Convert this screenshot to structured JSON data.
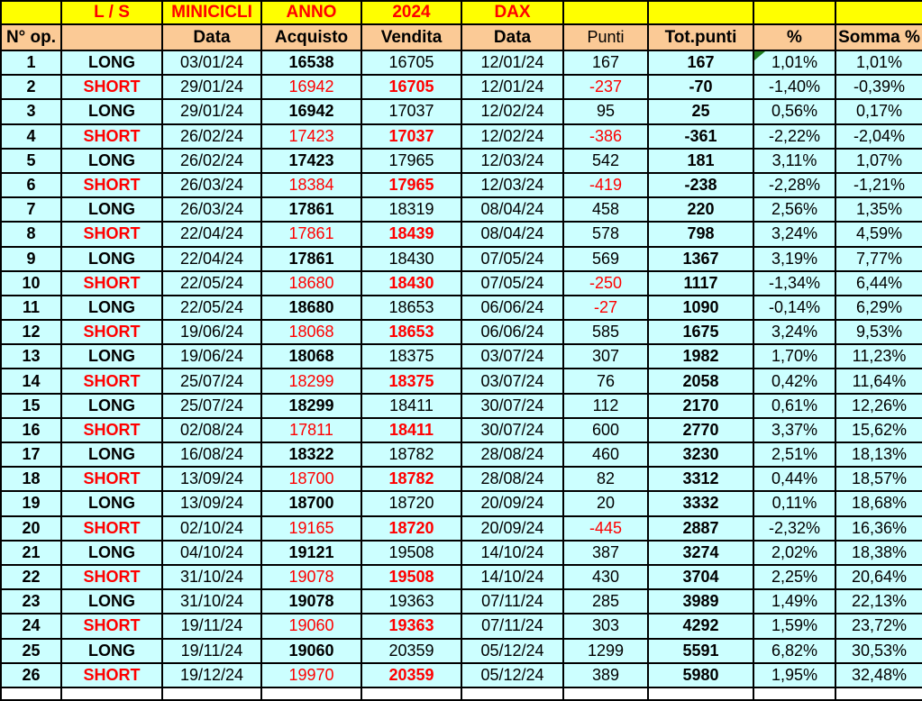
{
  "colors": {
    "header_band_yellow": "#FFFF00",
    "header_band_peach": "#FBCA96",
    "data_row_cyan": "#CCFFFF",
    "negative_and_short_red": "#FF0000",
    "corner_marker_green": "#1E7D1E",
    "grid_border_black": "#000000"
  },
  "header": {
    "row1": [
      "",
      "L / S",
      "MINICICLI",
      "ANNO",
      "2024",
      "DAX",
      "",
      "",
      "",
      ""
    ],
    "row2": [
      "N° op.",
      "",
      "Data",
      "Acquisto",
      "Vendita",
      "Data",
      "Punti",
      "Tot.punti",
      "%",
      "Somma %"
    ]
  },
  "columns": [
    "n",
    "ls",
    "data_in",
    "acquisto",
    "vendita",
    "data_out",
    "punti",
    "tot_punti",
    "pct",
    "somma_pct"
  ],
  "corner_marker": {
    "row_index": 0,
    "column": "pct"
  },
  "rows": [
    {
      "n": "1",
      "ls": "LONG",
      "data_in": "03/01/24",
      "acquisto": "16538",
      "vendita": "16705",
      "data_out": "12/01/24",
      "punti": "167",
      "tot_punti": "167",
      "pct": "1,01%",
      "somma_pct": "1,01%"
    },
    {
      "n": "2",
      "ls": "SHORT",
      "data_in": "29/01/24",
      "acquisto": "16942",
      "vendita": "16705",
      "data_out": "12/01/24",
      "punti": "-237",
      "tot_punti": "-70",
      "pct": "-1,40%",
      "somma_pct": "-0,39%"
    },
    {
      "n": "3",
      "ls": "LONG",
      "data_in": "29/01/24",
      "acquisto": "16942",
      "vendita": "17037",
      "data_out": "12/02/24",
      "punti": "95",
      "tot_punti": "25",
      "pct": "0,56%",
      "somma_pct": "0,17%"
    },
    {
      "n": "4",
      "ls": "SHORT",
      "data_in": "26/02/24",
      "acquisto": "17423",
      "vendita": "17037",
      "data_out": "12/02/24",
      "punti": "-386",
      "tot_punti": "-361",
      "pct": "-2,22%",
      "somma_pct": "-2,04%"
    },
    {
      "n": "5",
      "ls": "LONG",
      "data_in": "26/02/24",
      "acquisto": "17423",
      "vendita": "17965",
      "data_out": "12/03/24",
      "punti": "542",
      "tot_punti": "181",
      "pct": "3,11%",
      "somma_pct": "1,07%"
    },
    {
      "n": "6",
      "ls": "SHORT",
      "data_in": "26/03/24",
      "acquisto": "18384",
      "vendita": "17965",
      "data_out": "12/03/24",
      "punti": "-419",
      "tot_punti": "-238",
      "pct": "-2,28%",
      "somma_pct": "-1,21%"
    },
    {
      "n": "7",
      "ls": "LONG",
      "data_in": "26/03/24",
      "acquisto": "17861",
      "vendita": "18319",
      "data_out": "08/04/24",
      "punti": "458",
      "tot_punti": "220",
      "pct": "2,56%",
      "somma_pct": "1,35%"
    },
    {
      "n": "8",
      "ls": "SHORT",
      "data_in": "22/04/24",
      "acquisto": "17861",
      "vendita": "18439",
      "data_out": "08/04/24",
      "punti": "578",
      "tot_punti": "798",
      "pct": "3,24%",
      "somma_pct": "4,59%"
    },
    {
      "n": "9",
      "ls": "LONG",
      "data_in": "22/04/24",
      "acquisto": "17861",
      "vendita": "18430",
      "data_out": "07/05/24",
      "punti": "569",
      "tot_punti": "1367",
      "pct": "3,19%",
      "somma_pct": "7,77%"
    },
    {
      "n": "10",
      "ls": "SHORT",
      "data_in": "22/05/24",
      "acquisto": "18680",
      "vendita": "18430",
      "data_out": "07/05/24",
      "punti": "-250",
      "tot_punti": "1117",
      "pct": "-1,34%",
      "somma_pct": "6,44%"
    },
    {
      "n": "11",
      "ls": "LONG",
      "data_in": "22/05/24",
      "acquisto": "18680",
      "vendita": "18653",
      "data_out": "06/06/24",
      "punti": "-27",
      "tot_punti": "1090",
      "pct": "-0,14%",
      "somma_pct": "6,29%"
    },
    {
      "n": "12",
      "ls": "SHORT",
      "data_in": "19/06/24",
      "acquisto": "18068",
      "vendita": "18653",
      "data_out": "06/06/24",
      "punti": "585",
      "tot_punti": "1675",
      "pct": "3,24%",
      "somma_pct": "9,53%"
    },
    {
      "n": "13",
      "ls": "LONG",
      "data_in": "19/06/24",
      "acquisto": "18068",
      "vendita": "18375",
      "data_out": "03/07/24",
      "punti": "307",
      "tot_punti": "1982",
      "pct": "1,70%",
      "somma_pct": "11,23%"
    },
    {
      "n": "14",
      "ls": "SHORT",
      "data_in": "25/07/24",
      "acquisto": "18299",
      "vendita": "18375",
      "data_out": "03/07/24",
      "punti": "76",
      "tot_punti": "2058",
      "pct": "0,42%",
      "somma_pct": "11,64%"
    },
    {
      "n": "15",
      "ls": "LONG",
      "data_in": "25/07/24",
      "acquisto": "18299",
      "vendita": "18411",
      "data_out": "30/07/24",
      "punti": "112",
      "tot_punti": "2170",
      "pct": "0,61%",
      "somma_pct": "12,26%"
    },
    {
      "n": "16",
      "ls": "SHORT",
      "data_in": "02/08/24",
      "acquisto": "17811",
      "vendita": "18411",
      "data_out": "30/07/24",
      "punti": "600",
      "tot_punti": "2770",
      "pct": "3,37%",
      "somma_pct": "15,62%"
    },
    {
      "n": "17",
      "ls": "LONG",
      "data_in": "16/08/24",
      "acquisto": "18322",
      "vendita": "18782",
      "data_out": "28/08/24",
      "punti": "460",
      "tot_punti": "3230",
      "pct": "2,51%",
      "somma_pct": "18,13%"
    },
    {
      "n": "18",
      "ls": "SHORT",
      "data_in": "13/09/24",
      "acquisto": "18700",
      "vendita": "18782",
      "data_out": "28/08/24",
      "punti": "82",
      "tot_punti": "3312",
      "pct": "0,44%",
      "somma_pct": "18,57%"
    },
    {
      "n": "19",
      "ls": "LONG",
      "data_in": "13/09/24",
      "acquisto": "18700",
      "vendita": "18720",
      "data_out": "20/09/24",
      "punti": "20",
      "tot_punti": "3332",
      "pct": "0,11%",
      "somma_pct": "18,68%"
    },
    {
      "n": "20",
      "ls": "SHORT",
      "data_in": "02/10/24",
      "acquisto": "19165",
      "vendita": "18720",
      "data_out": "20/09/24",
      "punti": "-445",
      "tot_punti": "2887",
      "pct": "-2,32%",
      "somma_pct": "16,36%"
    },
    {
      "n": "21",
      "ls": "LONG",
      "data_in": "04/10/24",
      "acquisto": "19121",
      "vendita": "19508",
      "data_out": "14/10/24",
      "punti": "387",
      "tot_punti": "3274",
      "pct": "2,02%",
      "somma_pct": "18,38%"
    },
    {
      "n": "22",
      "ls": "SHORT",
      "data_in": "31/10/24",
      "acquisto": "19078",
      "vendita": "19508",
      "data_out": "14/10/24",
      "punti": "430",
      "tot_punti": "3704",
      "pct": "2,25%",
      "somma_pct": "20,64%"
    },
    {
      "n": "23",
      "ls": "LONG",
      "data_in": "31/10/24",
      "acquisto": "19078",
      "vendita": "19363",
      "data_out": "07/11/24",
      "punti": "285",
      "tot_punti": "3989",
      "pct": "1,49%",
      "somma_pct": "22,13%"
    },
    {
      "n": "24",
      "ls": "SHORT",
      "data_in": "19/11/24",
      "acquisto": "19060",
      "vendita": "19363",
      "data_out": "07/11/24",
      "punti": "303",
      "tot_punti": "4292",
      "pct": "1,59%",
      "somma_pct": "23,72%"
    },
    {
      "n": "25",
      "ls": "LONG",
      "data_in": "19/11/24",
      "acquisto": "19060",
      "vendita": "20359",
      "data_out": "05/12/24",
      "punti": "1299",
      "tot_punti": "5591",
      "pct": "6,82%",
      "somma_pct": "30,53%"
    },
    {
      "n": "26",
      "ls": "SHORT",
      "data_in": "19/12/24",
      "acquisto": "19970",
      "vendita": "20359",
      "data_out": "05/12/24",
      "punti": "389",
      "tot_punti": "5980",
      "pct": "1,95%",
      "somma_pct": "32,48%"
    }
  ]
}
